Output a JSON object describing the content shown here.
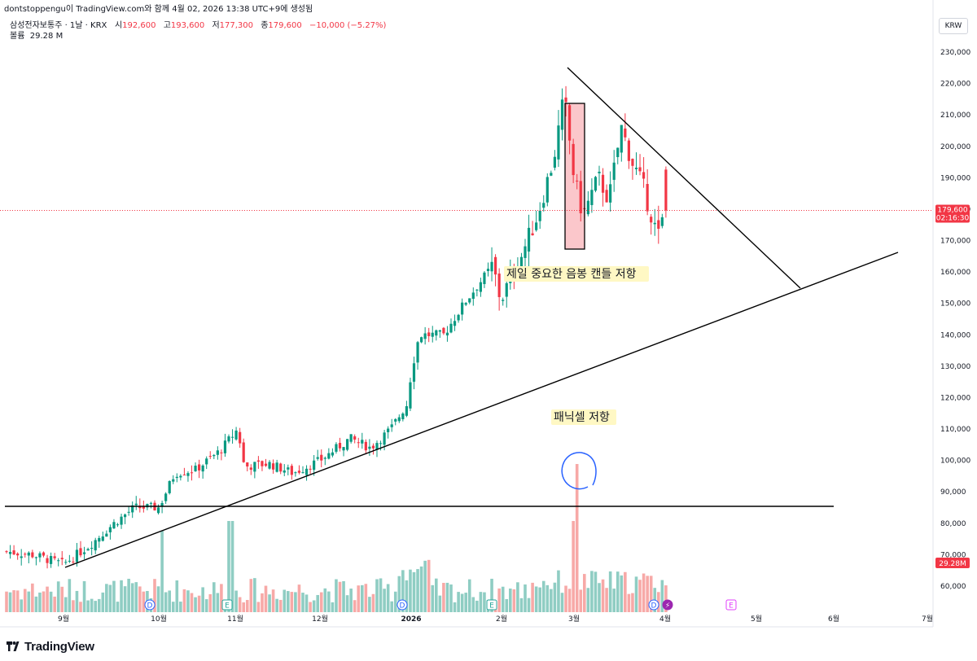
{
  "header": {
    "attribution": "dontstoppengu이 TradingView.com와 함께 4월 02, 2026 13:38 UTC+9에 생성됨",
    "symbol": "삼성전자보통주 · 1날 · KRX",
    "open_label": "시",
    "open": "192,600",
    "high_label": "고",
    "high": "193,600",
    "low_label": "저",
    "low": "177,300",
    "close_label": "종",
    "close": "179,600",
    "change": "−10,000 (−5.27%)",
    "volume_label": "볼륨",
    "volume": "29.28 M",
    "currency": "KRW"
  },
  "footer": {
    "brand": "TradingView"
  },
  "colors": {
    "up": "#089981",
    "down": "#f23645",
    "vol_up": "#8fcdc3",
    "vol_down": "#f7a9a7",
    "price_line": "#f23645"
  },
  "chart_data": {
    "type": "candlestick",
    "y_axis": {
      "range": [
        50000,
        235000
      ],
      "ticks": [
        "230,000",
        "220,000",
        "210,000",
        "200,000",
        "190,000",
        "180,000",
        "170,000",
        "160,000",
        "150,000",
        "140,000",
        "130,000",
        "120,000",
        "110,000",
        "100,000",
        "90,000",
        "80,000",
        "70,000",
        "60,000"
      ],
      "current_price_label": "179,600",
      "current_time_label": "02:16:30",
      "volume_label": "29.28M"
    },
    "x_axis": {
      "ticks": [
        "9월",
        "10월",
        "11월",
        "12월",
        "2026",
        "2월",
        "3월",
        "4월",
        "5월",
        "6월",
        "7월"
      ]
    },
    "candles_summary": {
      "start_close": 71000,
      "peak_high": 223000,
      "last_open": 192600,
      "last_high": 193600,
      "last_low": 177300,
      "last_close": 179600
    },
    "annotations": [
      {
        "text": "제일 중요한 음봉 캔들 저항"
      },
      {
        "text": "패닉셀 저항"
      }
    ],
    "events": [
      "D",
      "E",
      "D",
      "E",
      "D",
      "⚡",
      "E"
    ]
  }
}
